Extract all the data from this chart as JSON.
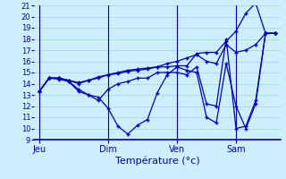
{
  "title": "Température (°c)",
  "background_color": "#cceeff",
  "grid_color": "#aaddcc",
  "line_color": "#0000bb",
  "ylim": [
    9,
    21
  ],
  "yticks": [
    9,
    10,
    11,
    12,
    13,
    14,
    15,
    16,
    17,
    18,
    19,
    20,
    21
  ],
  "day_labels": [
    "Jeu",
    "Dim",
    "Ven",
    "Sam"
  ],
  "day_positions": [
    0,
    7,
    14,
    20
  ],
  "num_points": 25,
  "series": [
    [
      13.3,
      14.5,
      14.5,
      14.2,
      13.5,
      13.0,
      12.8,
      11.8,
      10.2,
      9.5,
      10.3,
      10.8,
      13.2,
      14.8,
      15.5,
      15.2,
      15.0,
      11.0,
      10.5,
      15.8,
      12.0,
      10.0,
      12.2,
      18.5,
      18.5
    ],
    [
      13.3,
      14.5,
      14.5,
      14.3,
      14.0,
      14.3,
      14.5,
      14.8,
      15.0,
      15.2,
      15.3,
      15.4,
      15.5,
      15.8,
      16.0,
      16.3,
      16.6,
      16.0,
      15.8,
      17.5,
      16.8,
      17.0,
      17.5,
      18.5,
      18.5
    ],
    [
      13.3,
      14.5,
      14.5,
      14.3,
      14.1,
      14.3,
      14.6,
      14.8,
      14.9,
      15.1,
      15.2,
      15.3,
      15.5,
      15.5,
      15.6,
      15.6,
      16.7,
      16.8,
      16.8,
      17.8,
      18.7,
      20.3,
      21.2,
      18.5,
      18.5
    ],
    [
      13.3,
      14.5,
      14.4,
      14.2,
      13.3,
      13.0,
      12.5,
      13.5,
      14.0,
      14.2,
      14.5,
      14.5,
      15.0,
      15.0,
      15.0,
      14.8,
      15.5,
      12.2,
      12.0,
      18.0,
      10.0,
      10.2,
      12.5,
      18.5,
      18.5
    ]
  ]
}
